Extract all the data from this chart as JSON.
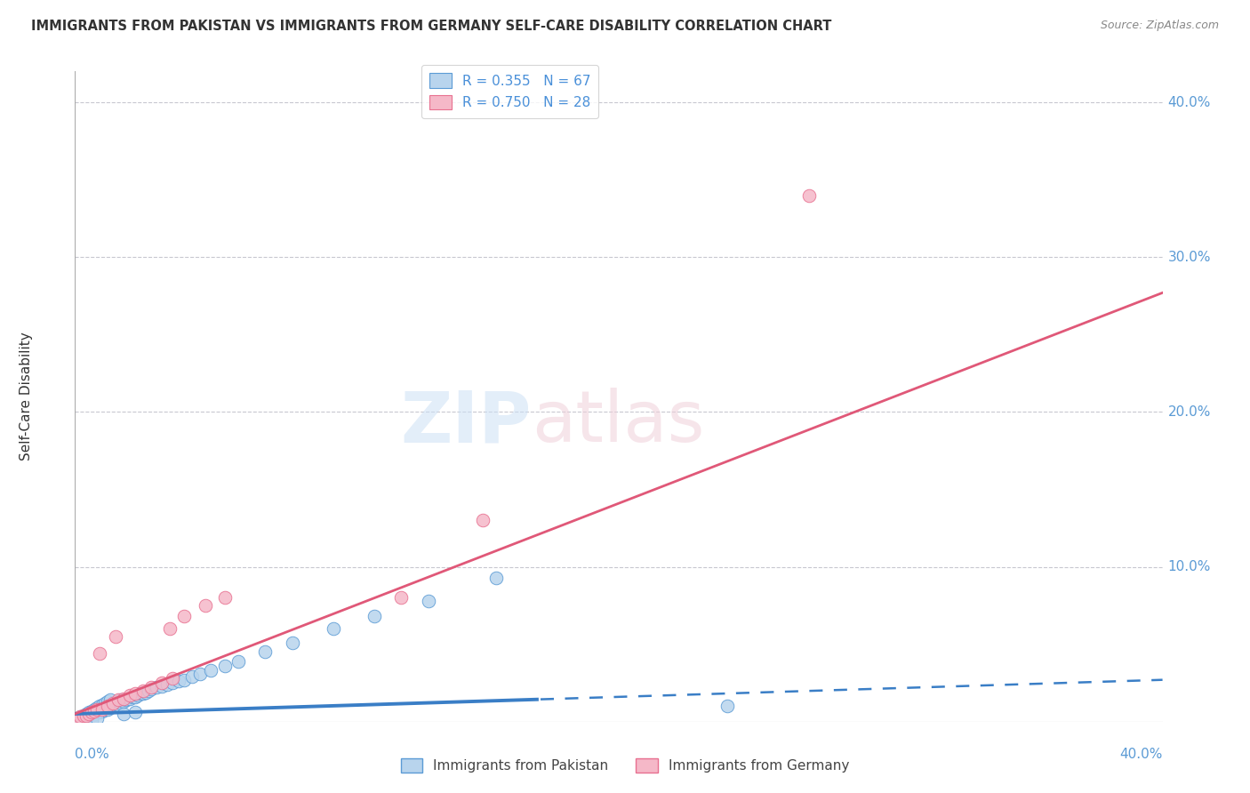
{
  "title": "IMMIGRANTS FROM PAKISTAN VS IMMIGRANTS FROM GERMANY SELF-CARE DISABILITY CORRELATION CHART",
  "source": "Source: ZipAtlas.com",
  "ylabel": "Self-Care Disability",
  "xlim": [
    0.0,
    0.4
  ],
  "ylim": [
    0.0,
    0.42
  ],
  "pakistan_R": 0.355,
  "pakistan_N": 67,
  "germany_R": 0.75,
  "germany_N": 28,
  "pakistan_color": "#b8d4ed",
  "pakistan_edge_color": "#5b9bd5",
  "pakistan_line_color": "#3a7ec6",
  "germany_color": "#f5b8c8",
  "germany_edge_color": "#e87090",
  "germany_line_color": "#e05878",
  "background_color": "#ffffff",
  "grid_color": "#c8c8d0",
  "pak_line_slope": 0.055,
  "pak_line_intercept": 0.005,
  "pak_line_solid_end": 0.17,
  "ger_line_slope": 0.68,
  "ger_line_intercept": 0.005,
  "pak_scatter_x": [
    0.001,
    0.002,
    0.002,
    0.003,
    0.003,
    0.004,
    0.004,
    0.005,
    0.005,
    0.006,
    0.006,
    0.007,
    0.007,
    0.008,
    0.008,
    0.009,
    0.009,
    0.01,
    0.01,
    0.011,
    0.011,
    0.012,
    0.012,
    0.013,
    0.013,
    0.014,
    0.015,
    0.015,
    0.016,
    0.016,
    0.017,
    0.017,
    0.018,
    0.019,
    0.02,
    0.021,
    0.022,
    0.023,
    0.024,
    0.025,
    0.026,
    0.027,
    0.028,
    0.03,
    0.032,
    0.034,
    0.036,
    0.038,
    0.04,
    0.043,
    0.046,
    0.05,
    0.055,
    0.06,
    0.07,
    0.08,
    0.095,
    0.11,
    0.13,
    0.155,
    0.002,
    0.004,
    0.006,
    0.008,
    0.018,
    0.022,
    0.24
  ],
  "pak_scatter_y": [
    0.001,
    0.002,
    0.003,
    0.002,
    0.004,
    0.003,
    0.005,
    0.004,
    0.006,
    0.004,
    0.007,
    0.005,
    0.008,
    0.006,
    0.009,
    0.006,
    0.01,
    0.007,
    0.011,
    0.008,
    0.012,
    0.008,
    0.013,
    0.009,
    0.014,
    0.01,
    0.01,
    0.012,
    0.011,
    0.013,
    0.012,
    0.014,
    0.013,
    0.014,
    0.015,
    0.016,
    0.016,
    0.017,
    0.018,
    0.018,
    0.019,
    0.02,
    0.021,
    0.022,
    0.023,
    0.024,
    0.025,
    0.026,
    0.027,
    0.029,
    0.031,
    0.033,
    0.036,
    0.039,
    0.045,
    0.051,
    0.06,
    0.068,
    0.078,
    0.093,
    0.001,
    0.001,
    0.001,
    0.002,
    0.005,
    0.006,
    0.01
  ],
  "ger_scatter_x": [
    0.001,
    0.002,
    0.003,
    0.004,
    0.005,
    0.006,
    0.007,
    0.008,
    0.01,
    0.012,
    0.014,
    0.016,
    0.018,
    0.02,
    0.022,
    0.025,
    0.028,
    0.032,
    0.036,
    0.12,
    0.15,
    0.27,
    0.035,
    0.04,
    0.048,
    0.055,
    0.015,
    0.009
  ],
  "ger_scatter_y": [
    0.002,
    0.003,
    0.004,
    0.004,
    0.005,
    0.006,
    0.007,
    0.008,
    0.008,
    0.01,
    0.012,
    0.014,
    0.015,
    0.017,
    0.018,
    0.02,
    0.022,
    0.025,
    0.028,
    0.08,
    0.13,
    0.34,
    0.06,
    0.068,
    0.075,
    0.08,
    0.055,
    0.044
  ]
}
